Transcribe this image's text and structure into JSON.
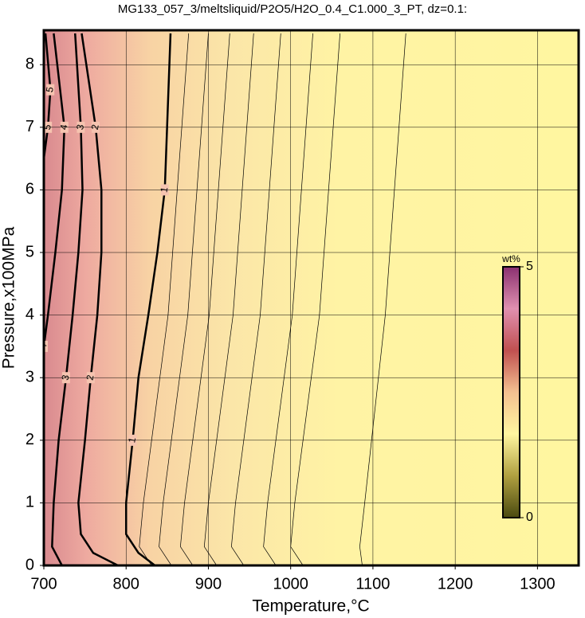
{
  "chart_data": {
    "type": "contour",
    "title": "MG133_057_3/meltsliquid/P2O5/H2O_0.4_C1.000_3_PT, dz=0.1:",
    "x_label": "Temperature,°C",
    "y_label": "Pressure,x100MPa",
    "xlim": [
      700,
      1350
    ],
    "ylim": [
      0,
      8.55
    ],
    "xticks": [
      700,
      800,
      900,
      1000,
      1100,
      1200,
      1300
    ],
    "yticks": [
      0,
      1,
      2,
      3,
      4,
      5,
      6,
      7,
      8
    ],
    "grid": true,
    "contours": [
      {
        "level": 5,
        "bold": true,
        "x": [
          702,
          708,
          705,
          700
        ],
        "y": [
          8.5,
          7.6,
          7,
          6.5
        ]
      },
      {
        "level": 4,
        "bold": true,
        "x": [
          712,
          725,
          722,
          714,
          705,
          700
        ],
        "y": [
          8.5,
          7,
          6,
          5,
          4,
          3.5
        ]
      },
      {
        "level": 3,
        "bold": true,
        "x": [
          738,
          745,
          747,
          742,
          735,
          727,
          718,
          712,
          710,
          722
        ],
        "y": [
          8.5,
          7,
          6,
          5,
          4,
          3,
          2,
          1,
          0.3,
          0
        ]
      },
      {
        "level": 2,
        "bold": true,
        "x": [
          746,
          763,
          770,
          770,
          765,
          757,
          750,
          742,
          745,
          760,
          790
        ],
        "y": [
          8.5,
          7,
          6,
          5,
          4,
          3,
          2,
          1,
          0.5,
          0.2,
          0
        ]
      },
      {
        "level": 1,
        "bold": true,
        "x": [
          854,
          847,
          838,
          827,
          815,
          808,
          800,
          800,
          815,
          835
        ],
        "y": [
          8.5,
          6,
          5,
          4,
          3,
          2,
          1,
          0.5,
          0.2,
          0
        ]
      },
      {
        "level": 0.9,
        "bold": false,
        "x": [
          876,
          851,
          821,
          816,
          831
        ],
        "y": [
          8.5,
          4,
          1,
          0.3,
          0
        ]
      },
      {
        "level": 0.8,
        "bold": false,
        "x": [
          900,
          875,
          845,
          840,
          855
        ],
        "y": [
          8.5,
          4,
          1,
          0.3,
          0
        ]
      },
      {
        "level": 0.7,
        "bold": false,
        "x": [
          926,
          901,
          871,
          866,
          881
        ],
        "y": [
          8.5,
          4,
          1,
          0.3,
          0
        ]
      },
      {
        "level": 0.6,
        "bold": false,
        "x": [
          955,
          930,
          900,
          895,
          910
        ],
        "y": [
          8.5,
          4,
          1,
          0.3,
          0
        ]
      },
      {
        "level": 0.5,
        "bold": false,
        "x": [
          988,
          963,
          933,
          928,
          943
        ],
        "y": [
          8.5,
          4,
          1,
          0.3,
          0
        ]
      },
      {
        "level": 0.4,
        "bold": false,
        "x": [
          1027,
          1002,
          972,
          967,
          982
        ],
        "y": [
          8.5,
          4,
          1,
          0.3,
          0
        ]
      },
      {
        "level": 0.3,
        "bold": false,
        "x": [
          1060,
          1035,
          1005,
          1000,
          1015
        ],
        "y": [
          8.5,
          4,
          1,
          0.3,
          0
        ]
      },
      {
        "level": 0.2,
        "bold": false,
        "x": [
          1140,
          1115,
          1090,
          1084,
          1087
        ],
        "y": [
          8.5,
          4,
          1,
          0.3,
          0
        ]
      }
    ],
    "colorbar": {
      "label": "wt%",
      "lim": [
        0,
        5
      ],
      "ticks": [
        0,
        5
      ],
      "colors": [
        "#4a4a10",
        "#b0a040",
        "#fff6a0",
        "#f4c090",
        "#c05050",
        "#e090b0",
        "#8a3070"
      ]
    }
  }
}
